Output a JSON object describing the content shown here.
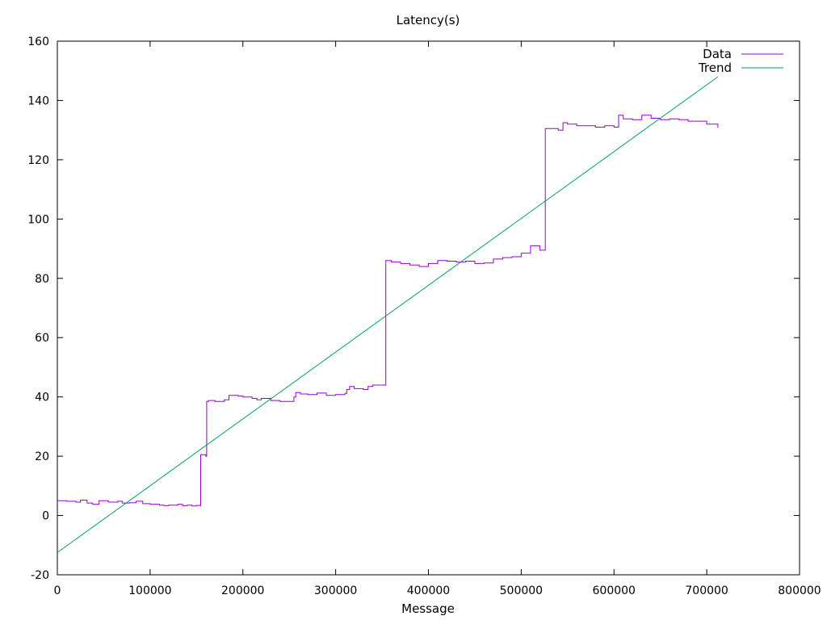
{
  "chart_data": {
    "type": "line",
    "title": "Latency(s)",
    "xlabel": "Message",
    "ylabel": "",
    "xlim": [
      0,
      800000
    ],
    "ylim": [
      -20,
      160
    ],
    "x_ticks": [
      0,
      100000,
      200000,
      300000,
      400000,
      500000,
      600000,
      700000,
      800000
    ],
    "y_ticks": [
      -20,
      0,
      20,
      40,
      60,
      80,
      100,
      120,
      140,
      160
    ],
    "grid": false,
    "legend_position": "top-right",
    "series": [
      {
        "name": "Data",
        "color": "#9400d3",
        "x": [
          0,
          10000,
          20000,
          25000,
          32000,
          38000,
          45000,
          55000,
          65000,
          70000,
          78000,
          85000,
          92000,
          100000,
          110000,
          115000,
          120000,
          130000,
          135000,
          140000,
          145000,
          150000,
          154000,
          154500,
          160000,
          161000,
          163000,
          170000,
          180000,
          185000,
          195000,
          200000,
          210000,
          215000,
          220000,
          230000,
          240000,
          250000,
          255000,
          257000,
          262000,
          270000,
          280000,
          290000,
          300000,
          310000,
          312000,
          315000,
          320000,
          330000,
          335000,
          340000,
          350000,
          353000,
          354000,
          360000,
          370000,
          380000,
          390000,
          400000,
          410000,
          420000,
          430000,
          440000,
          450000,
          460000,
          470000,
          480000,
          490000,
          500000,
          505000,
          510000,
          520000,
          525000,
          526000,
          530000,
          540000,
          545000,
          550000,
          560000,
          570000,
          580000,
          590000,
          600000,
          605000,
          610000,
          620000,
          630000,
          640000,
          650000,
          660000,
          670000,
          680000,
          690000,
          700000,
          712000
        ],
        "values": [
          5,
          4.8,
          4.5,
          5.2,
          4.2,
          3.8,
          5,
          4.5,
          4.8,
          4.2,
          4.3,
          4.8,
          4,
          3.8,
          3.5,
          3.3,
          3.5,
          3.8,
          3.3,
          3.5,
          3.2,
          3.4,
          3.3,
          20.5,
          20,
          38.5,
          38.8,
          38.5,
          39,
          40.5,
          40.3,
          40,
          39.5,
          39,
          39.5,
          38.8,
          38.5,
          38.5,
          40,
          41.5,
          41,
          40.8,
          41.3,
          40.5,
          40.8,
          41.2,
          42.5,
          43.5,
          42.8,
          42.5,
          43.5,
          44,
          44,
          44,
          86,
          85.5,
          85,
          84.5,
          84,
          85,
          86,
          85.8,
          85.5,
          85.8,
          85,
          85.2,
          86.5,
          87,
          87.3,
          88.5,
          88.5,
          91,
          89.5,
          89.5,
          130.5,
          130.5,
          130,
          132.5,
          132,
          131.5,
          131.5,
          131,
          131.5,
          131,
          135,
          133.8,
          133.5,
          135,
          134,
          133.5,
          133.8,
          133.5,
          133,
          133,
          132,
          130.8
        ]
      },
      {
        "name": "Trend",
        "color": "#009e73",
        "x": [
          0,
          712000
        ],
        "values": [
          -12.5,
          148
        ]
      }
    ]
  }
}
